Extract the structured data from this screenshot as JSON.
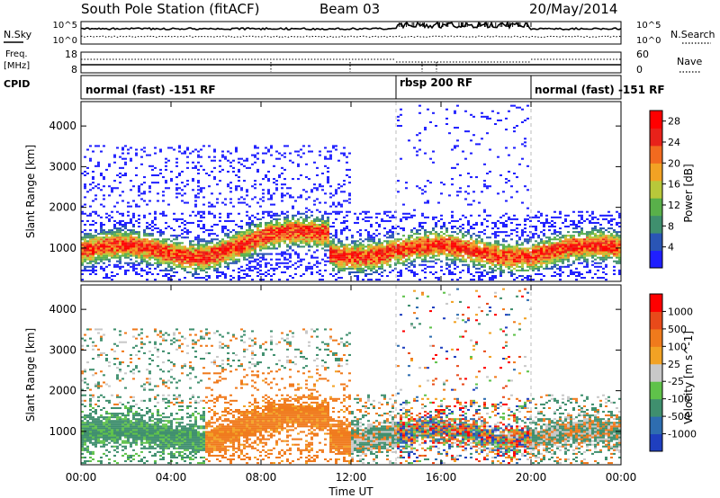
{
  "header": {
    "station": "South Pole Station (fitACF)",
    "beam": "Beam 03",
    "date": "20/May/2014"
  },
  "side_labels": {
    "nsky": "N.Sky",
    "nsearch": "N.Search",
    "freq_line1": "Freq.",
    "freq_line2": "[MHz]",
    "nave": "Nave",
    "cpid": "CPID"
  },
  "noise_panel": {
    "left_ticks": [
      "10^5",
      "10^0"
    ],
    "right_ticks": [
      "10^5",
      "10^0"
    ]
  },
  "freq_panel": {
    "left_ticks": [
      "18",
      "8"
    ],
    "right_ticks": [
      "60",
      "0"
    ]
  },
  "cpid_segments": [
    {
      "label": "normal (fast) -151 RF",
      "start": "00:00",
      "end": "14:00"
    },
    {
      "label": "rbsp 200 RF",
      "start": "14:00",
      "end": "20:00"
    },
    {
      "label": "normal (fast) -151 RF",
      "start": "20:00",
      "end": "24:00"
    }
  ],
  "chart_data": [
    {
      "type": "heatmap",
      "title": "Power",
      "xlabel": "Time UT",
      "ylabel": "Slant Range [km]",
      "x_ticks": [
        "00:00",
        "04:00",
        "08:00",
        "12:00",
        "16:00",
        "20:00",
        "00:00"
      ],
      "y_ticks": [
        "1000",
        "2000",
        "3000",
        "4000"
      ],
      "ylim": [
        180,
        4600
      ],
      "colorbar": {
        "label": "Power [dB]",
        "ticks": [
          "4",
          "8",
          "12",
          "16",
          "20",
          "24",
          "28"
        ],
        "range": [
          0,
          30
        ]
      }
    },
    {
      "type": "heatmap",
      "title": "Velocity",
      "xlabel": "Time UT",
      "ylabel": "Slant Range [km]",
      "x_ticks": [
        "00:00",
        "04:00",
        "08:00",
        "12:00",
        "16:00",
        "20:00",
        "00:00"
      ],
      "y_ticks": [
        "1000",
        "2000",
        "3000",
        "4000"
      ],
      "ylim": [
        180,
        4600
      ],
      "colorbar": {
        "label": "Velocity [m s^-1]",
        "ticks": [
          "1000",
          "500",
          "100",
          "25",
          "-25",
          "-100",
          "-500",
          "-1000"
        ]
      }
    }
  ],
  "colors": {
    "power_scale": [
      "#1f1fff",
      "#2a55b5",
      "#3f8f6e",
      "#59b04a",
      "#b8c83a",
      "#f2a224",
      "#f26a1f",
      "#e8221a",
      "#ff0000"
    ],
    "velocity_scale": [
      "#1f3fbf",
      "#2e6db0",
      "#3f8f6e",
      "#5fc24a",
      "#c8c8c8",
      "#f2a224",
      "#f07a1c",
      "#e84a1a",
      "#ff0000"
    ]
  }
}
